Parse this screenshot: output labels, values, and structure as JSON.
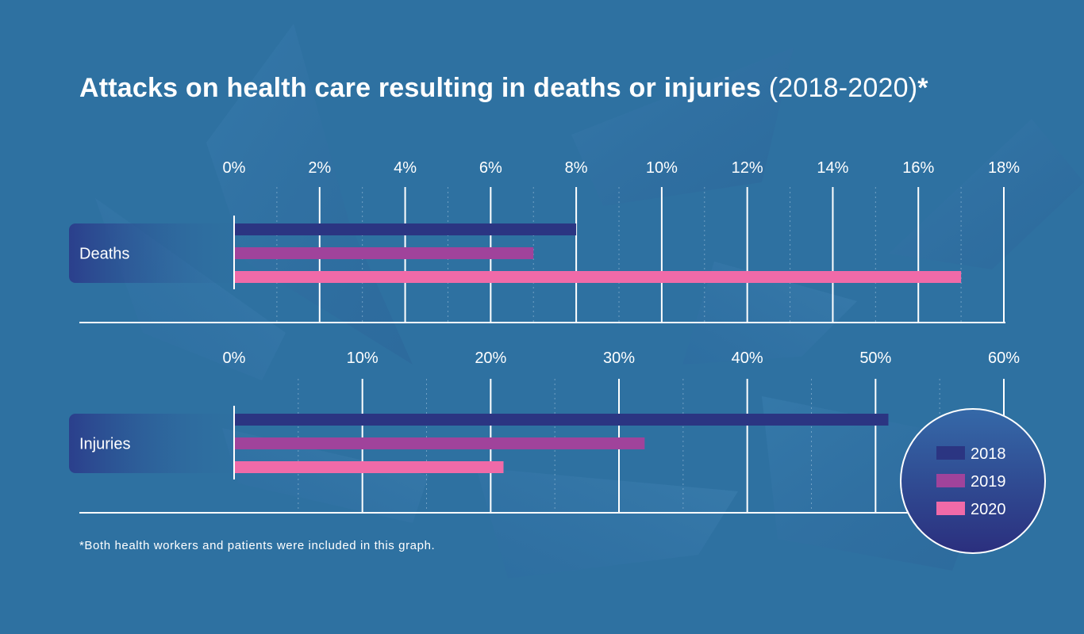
{
  "header": {
    "title": "Attacks on health care resulting in deaths or injuries",
    "subtitle": "(2018-2020)",
    "asterisk": "*"
  },
  "footnote": "*Both health workers and patients were included in this graph.",
  "colors": {
    "background": "#2e71a1",
    "series_2018": "#2b3582",
    "series_2019": "#a0439b",
    "series_2020": "#f06aa8",
    "category_box": "#2d4a94",
    "legend_circle": "#2d3f8c"
  },
  "chart_data": [
    {
      "type": "bar",
      "orientation": "horizontal",
      "title": "Attacks on health care resulting in deaths or injuries (2018-2020)*",
      "categories": [
        "Deaths"
      ],
      "series": [
        {
          "name": "2018",
          "values": [
            8
          ]
        },
        {
          "name": "2019",
          "values": [
            7
          ]
        },
        {
          "name": "2020",
          "values": [
            17
          ]
        }
      ],
      "xlim": [
        0,
        18
      ],
      "tick_labels": [
        "0%",
        "2%",
        "4%",
        "6%",
        "8%",
        "10%",
        "12%",
        "14%",
        "16%",
        "18%"
      ],
      "grid": true
    },
    {
      "type": "bar",
      "orientation": "horizontal",
      "categories": [
        "Injuries"
      ],
      "series": [
        {
          "name": "2018",
          "values": [
            51
          ]
        },
        {
          "name": "2019",
          "values": [
            32
          ]
        },
        {
          "name": "2020",
          "values": [
            21
          ]
        }
      ],
      "xlim": [
        0,
        60
      ],
      "tick_labels": [
        "0%",
        "10%",
        "20%",
        "30%",
        "40%",
        "50%",
        "60%"
      ],
      "grid": true
    }
  ],
  "legend": {
    "placement": "bottom-right",
    "items": [
      "2018",
      "2019",
      "2020"
    ]
  }
}
